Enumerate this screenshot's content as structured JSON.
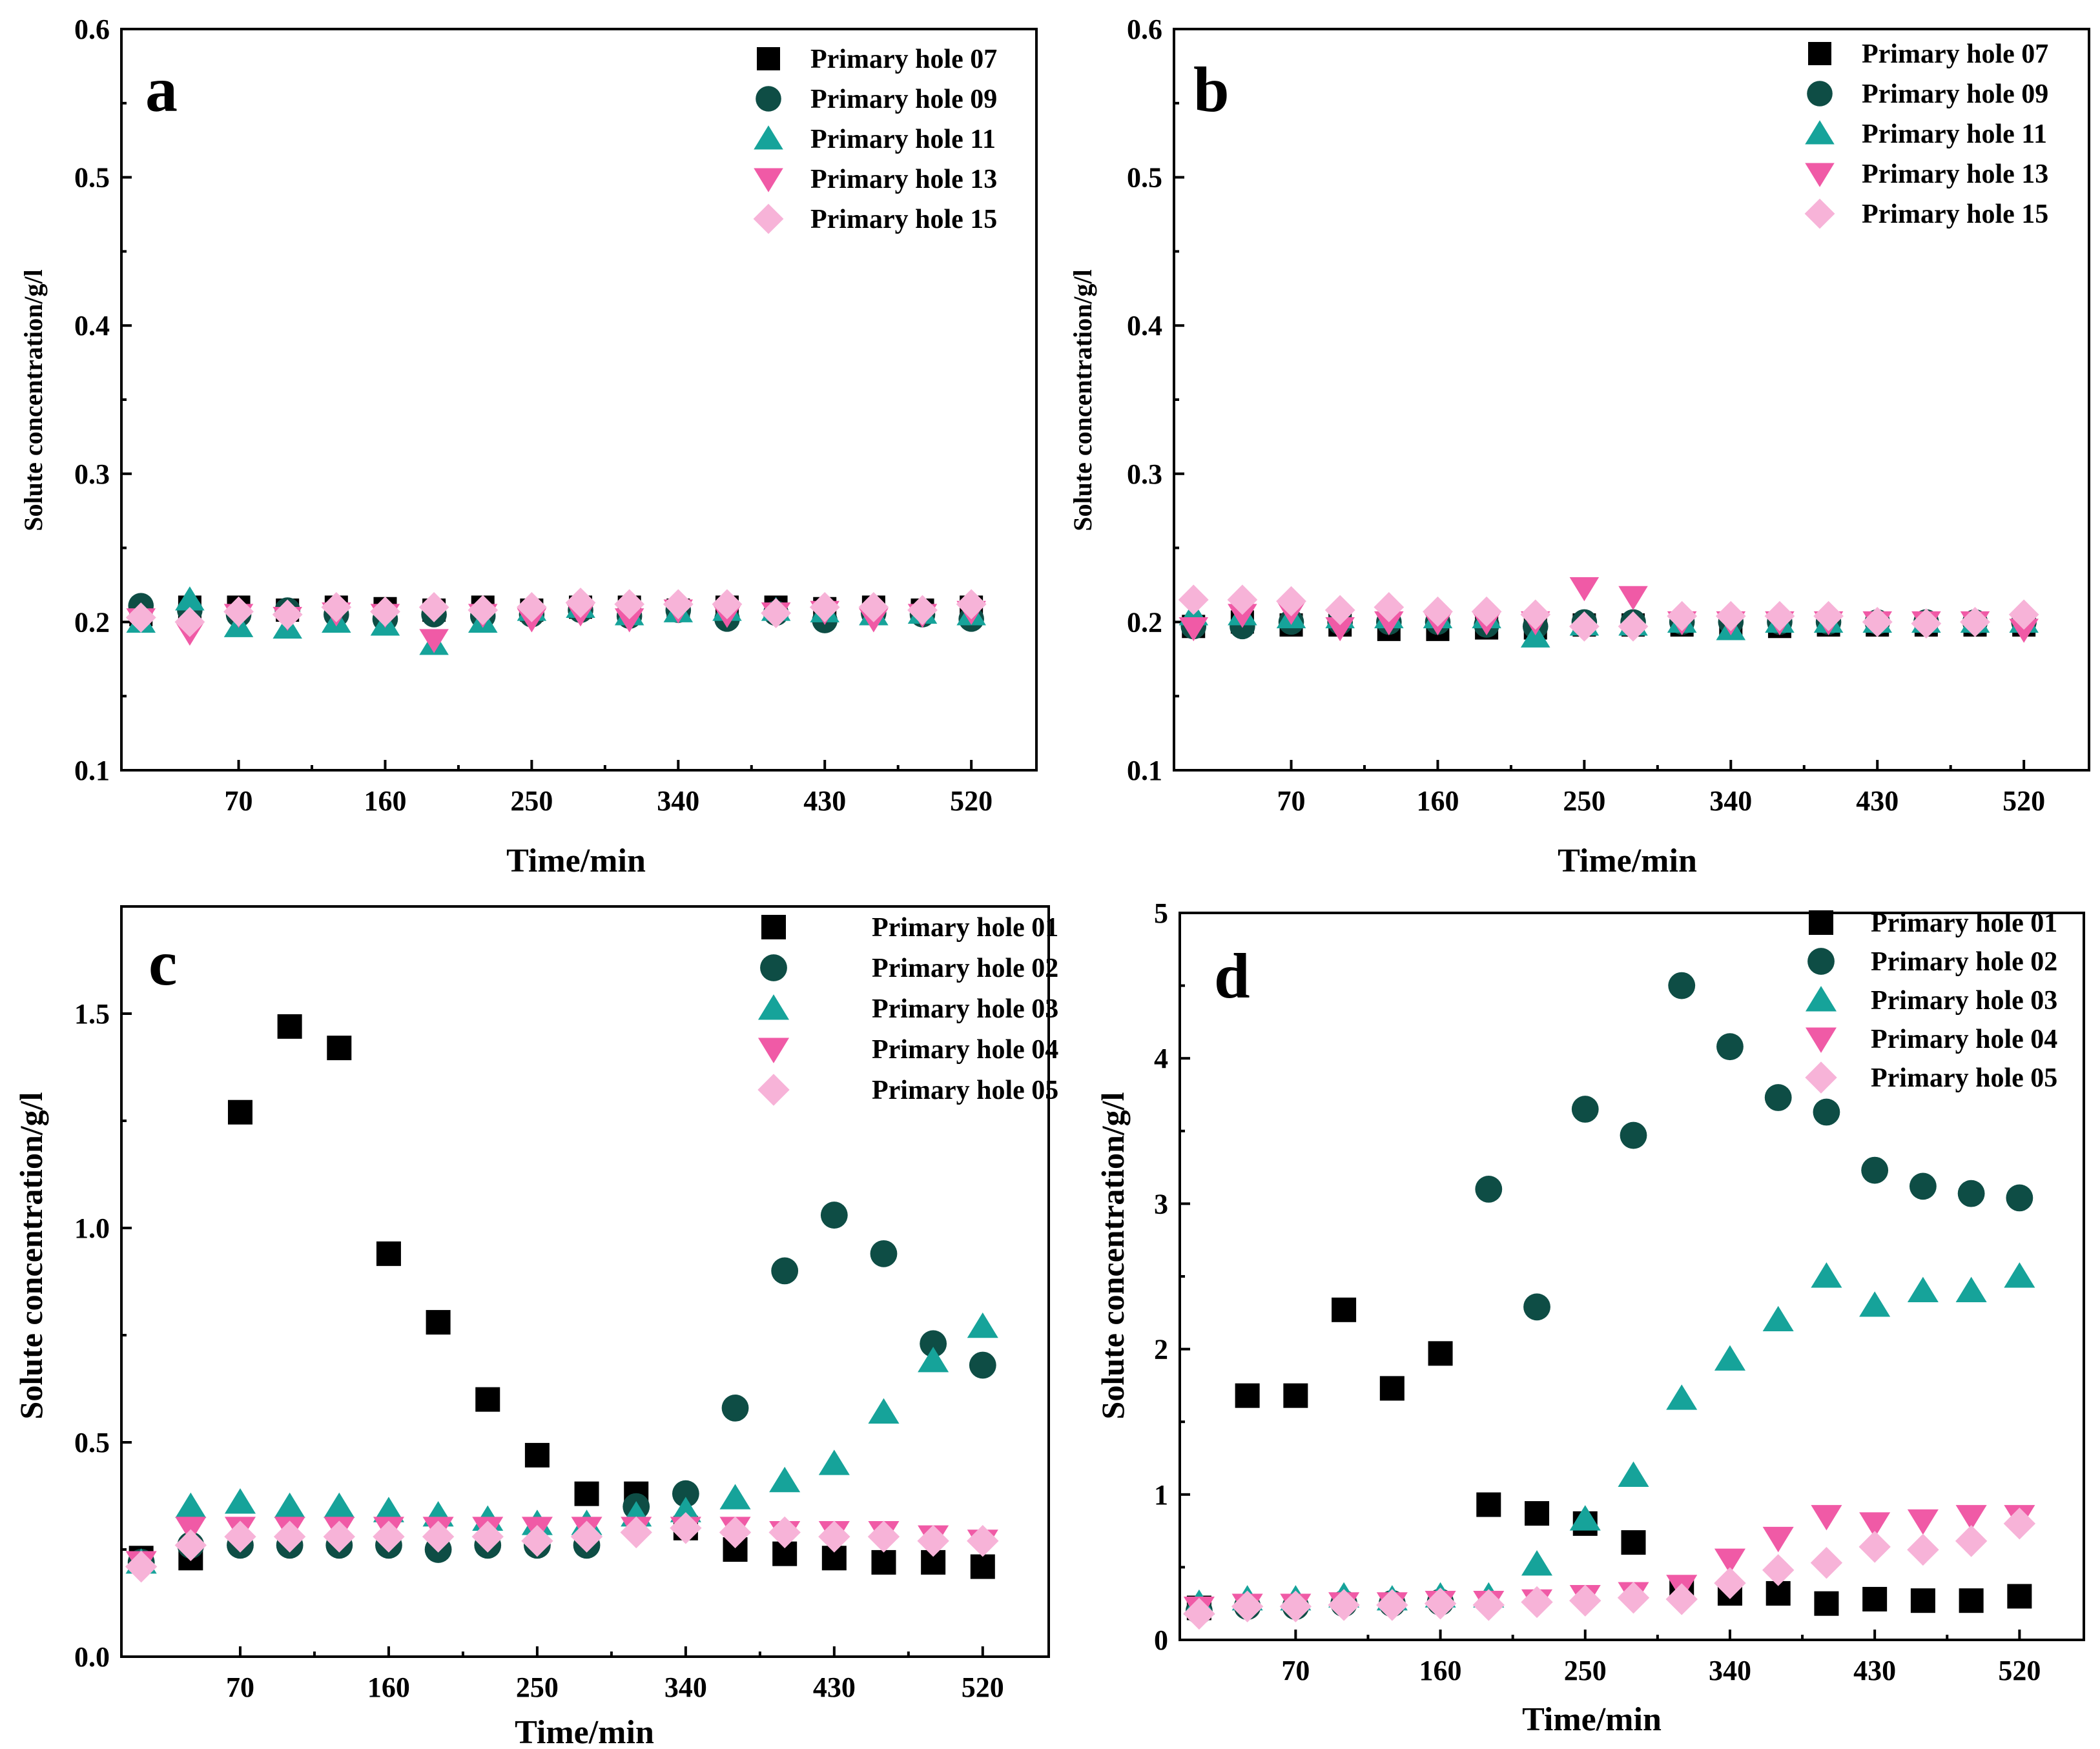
{
  "colors": {
    "black": "#000000",
    "dark_teal": "#0e4d45",
    "teal": "#16a39a",
    "pink": "#f05aa6",
    "light_pink": "#f7b3d8"
  },
  "chart_data": [
    {
      "type": "scatter",
      "panel": "a",
      "xlabel": "Time/min",
      "ylabel": "Solute concentration/g/l",
      "xticks": [
        70,
        160,
        250,
        340,
        430,
        520
      ],
      "yticks": [
        0.1,
        0.2,
        0.3,
        0.4,
        0.5,
        0.6
      ],
      "ytick_labels": [
        "0.1",
        "0.2",
        "0.3",
        "0.4",
        "0.5",
        "0.6"
      ],
      "xlim": [
        -2,
        560
      ],
      "ylim": [
        0.1,
        0.6
      ],
      "legend_position": "top-right",
      "x": [
        10,
        40,
        70,
        100,
        130,
        160,
        190,
        220,
        250,
        280,
        310,
        340,
        370,
        400,
        430,
        460,
        490,
        520
      ],
      "series": [
        {
          "name": "Primary hole 07",
          "marker": "square",
          "color": "#000000",
          "values": [
            0.205,
            0.21,
            0.21,
            0.208,
            0.21,
            0.209,
            0.208,
            0.21,
            0.208,
            0.21,
            0.21,
            0.208,
            0.21,
            0.21,
            0.209,
            0.21,
            0.208,
            0.21
          ]
        },
        {
          "name": "Primary hole 09",
          "marker": "circle",
          "color": "#0e4d45",
          "values": [
            0.211,
            0.208,
            0.205,
            0.208,
            0.205,
            0.202,
            0.205,
            0.204,
            0.205,
            0.208,
            0.204,
            0.208,
            0.202,
            0.206,
            0.201,
            0.206,
            0.205,
            0.202
          ]
        },
        {
          "name": "Primary hole 11",
          "marker": "triangle-up",
          "color": "#16a39a",
          "values": [
            0.2,
            0.215,
            0.197,
            0.196,
            0.2,
            0.198,
            0.185,
            0.2,
            0.208,
            0.21,
            0.205,
            0.207,
            0.208,
            0.208,
            0.207,
            0.205,
            0.206,
            0.205
          ]
        },
        {
          "name": "Primary hole 13",
          "marker": "triangle-down",
          "color": "#f05aa6",
          "values": [
            0.202,
            0.193,
            0.205,
            0.203,
            0.206,
            0.205,
            0.188,
            0.205,
            0.202,
            0.206,
            0.202,
            0.208,
            0.205,
            0.206,
            0.207,
            0.202,
            0.205,
            0.207
          ]
        },
        {
          "name": "Primary hole 15",
          "marker": "diamond",
          "color": "#f7b3d8",
          "values": [
            0.203,
            0.2,
            0.207,
            0.205,
            0.21,
            0.207,
            0.21,
            0.208,
            0.21,
            0.213,
            0.212,
            0.212,
            0.212,
            0.206,
            0.21,
            0.21,
            0.208,
            0.212
          ]
        }
      ]
    },
    {
      "type": "scatter",
      "panel": "b",
      "xlabel": "Time/min",
      "ylabel": "Solute concentration/g/l",
      "xticks": [
        70,
        160,
        250,
        340,
        430,
        520
      ],
      "yticks": [
        0.1,
        0.2,
        0.3,
        0.4,
        0.5,
        0.6
      ],
      "ytick_labels": [
        "0.1",
        "0.2",
        "0.3",
        "0.4",
        "0.5",
        "0.6"
      ],
      "xlim": [
        -2,
        560
      ],
      "ylim": [
        0.1,
        0.6
      ],
      "legend_position": "top-right",
      "x": [
        10,
        40,
        70,
        100,
        130,
        160,
        190,
        220,
        250,
        280,
        310,
        340,
        370,
        400,
        430,
        460,
        490,
        520
      ],
      "series": [
        {
          "name": "Primary hole 07",
          "marker": "square",
          "color": "#000000",
          "values": [
            0.197,
            0.2,
            0.198,
            0.198,
            0.195,
            0.195,
            0.196,
            0.196,
            0.198,
            0.198,
            0.198,
            0.198,
            0.197,
            0.198,
            0.198,
            0.198,
            0.198,
            0.198
          ]
        },
        {
          "name": "Primary hole 09",
          "marker": "circle",
          "color": "#0e4d45",
          "values": [
            0.197,
            0.197,
            0.2,
            0.2,
            0.2,
            0.2,
            0.198,
            0.197,
            0.2,
            0.2,
            0.2,
            0.2,
            0.2,
            0.2,
            0.2,
            0.2,
            0.2,
            0.2
          ]
        },
        {
          "name": "Primary hole 11",
          "marker": "triangle-up",
          "color": "#16a39a",
          "values": [
            0.205,
            0.205,
            0.203,
            0.203,
            0.203,
            0.203,
            0.203,
            0.19,
            0.198,
            0.198,
            0.2,
            0.195,
            0.2,
            0.2,
            0.2,
            0.2,
            0.2,
            0.2
          ]
        },
        {
          "name": "Primary hole 13",
          "marker": "triangle-down",
          "color": "#f05aa6",
          "values": [
            0.196,
            0.205,
            0.207,
            0.196,
            0.2,
            0.2,
            0.2,
            0.2,
            0.223,
            0.217,
            0.2,
            0.2,
            0.2,
            0.2,
            0.2,
            0.2,
            0.2,
            0.195
          ]
        },
        {
          "name": "Primary hole 15",
          "marker": "diamond",
          "color": "#f7b3d8",
          "values": [
            0.215,
            0.215,
            0.214,
            0.208,
            0.21,
            0.207,
            0.207,
            0.205,
            0.197,
            0.197,
            0.204,
            0.204,
            0.204,
            0.204,
            0.2,
            0.199,
            0.2,
            0.205
          ]
        }
      ]
    },
    {
      "type": "scatter",
      "panel": "c",
      "xlabel": "Time/min",
      "ylabel": "Solute concentration/g/l",
      "xticks": [
        70,
        160,
        250,
        340,
        430,
        520
      ],
      "yticks": [
        0.0,
        0.5,
        1.0,
        1.5
      ],
      "ytick_labels": [
        "0.0",
        "0.5",
        "1.0",
        "1.5"
      ],
      "xlim": [
        -2,
        560
      ],
      "ylim": [
        0.0,
        1.75
      ],
      "legend_position": "top-right",
      "x": [
        10,
        40,
        70,
        100,
        130,
        160,
        190,
        220,
        250,
        280,
        310,
        340,
        370,
        400,
        430,
        460,
        490,
        520
      ],
      "series": [
        {
          "name": "Primary hole 01",
          "marker": "square",
          "color": "#000000",
          "values": [
            0.23,
            0.23,
            1.27,
            1.47,
            1.42,
            0.94,
            0.78,
            0.6,
            0.47,
            0.38,
            0.38,
            0.3,
            0.25,
            0.24,
            0.23,
            0.22,
            0.22,
            0.21
          ]
        },
        {
          "name": "Primary hole 02",
          "marker": "circle",
          "color": "#0e4d45",
          "values": [
            0.22,
            0.26,
            0.26,
            0.26,
            0.26,
            0.26,
            0.25,
            0.26,
            0.26,
            0.26,
            0.35,
            0.38,
            0.58,
            0.9,
            1.03,
            0.94,
            0.73,
            0.68
          ]
        },
        {
          "name": "Primary hole 03",
          "marker": "triangle-up",
          "color": "#16a39a",
          "values": [
            0.22,
            0.35,
            0.36,
            0.35,
            0.35,
            0.34,
            0.33,
            0.32,
            0.31,
            0.31,
            0.33,
            0.34,
            0.37,
            0.41,
            0.45,
            0.57,
            0.69,
            0.77
          ]
        },
        {
          "name": "Primary hole 04",
          "marker": "triangle-down",
          "color": "#f05aa6",
          "values": [
            0.22,
            0.3,
            0.3,
            0.3,
            0.3,
            0.3,
            0.3,
            0.3,
            0.3,
            0.3,
            0.3,
            0.3,
            0.3,
            0.29,
            0.29,
            0.29,
            0.28,
            0.27
          ]
        },
        {
          "name": "Primary hole 05",
          "marker": "diamond",
          "color": "#f7b3d8",
          "values": [
            0.21,
            0.26,
            0.28,
            0.28,
            0.28,
            0.28,
            0.28,
            0.28,
            0.27,
            0.28,
            0.29,
            0.3,
            0.29,
            0.29,
            0.28,
            0.28,
            0.27,
            0.27
          ]
        }
      ]
    },
    {
      "type": "scatter",
      "panel": "d",
      "xlabel": "Time/min",
      "ylabel": "Solute concentration/g/l",
      "xticks": [
        70,
        160,
        250,
        340,
        430,
        520
      ],
      "yticks": [
        0,
        1,
        2,
        3,
        4,
        5
      ],
      "ytick_labels": [
        "0",
        "1",
        "2",
        "3",
        "4",
        "5"
      ],
      "xlim": [
        -2,
        560
      ],
      "ylim": [
        0,
        5
      ],
      "legend_position": "top-right",
      "x": [
        10,
        40,
        70,
        100,
        130,
        160,
        190,
        220,
        250,
        280,
        310,
        340,
        370,
        400,
        430,
        460,
        490,
        520
      ],
      "series": [
        {
          "name": "Primary hole 01",
          "marker": "square",
          "color": "#000000",
          "values": [
            0.22,
            1.68,
            1.68,
            2.27,
            1.73,
            1.97,
            0.93,
            0.87,
            0.8,
            0.67,
            0.35,
            0.32,
            0.32,
            0.25,
            0.28,
            0.27,
            0.27,
            0.3
          ]
        },
        {
          "name": "Primary hole 02",
          "marker": "circle",
          "color": "#0e4d45",
          "values": [
            0.2,
            0.23,
            0.23,
            0.25,
            0.25,
            0.26,
            3.1,
            2.29,
            3.65,
            3.47,
            4.5,
            4.08,
            3.73,
            3.63,
            3.23,
            3.12,
            3.07,
            3.04
          ]
        },
        {
          "name": "Primary hole 03",
          "marker": "triangle-up",
          "color": "#16a39a",
          "values": [
            0.25,
            0.28,
            0.28,
            0.3,
            0.28,
            0.3,
            0.3,
            0.52,
            0.83,
            1.13,
            1.66,
            1.93,
            2.2,
            2.5,
            2.3,
            2.4,
            2.4,
            2.5
          ]
        },
        {
          "name": "Primary hole 04",
          "marker": "triangle-down",
          "color": "#f05aa6",
          "values": [
            0.22,
            0.24,
            0.24,
            0.25,
            0.25,
            0.26,
            0.26,
            0.27,
            0.3,
            0.32,
            0.37,
            0.55,
            0.7,
            0.85,
            0.8,
            0.82,
            0.85,
            0.85
          ]
        },
        {
          "name": "Primary hole 05",
          "marker": "diamond",
          "color": "#f7b3d8",
          "values": [
            0.18,
            0.23,
            0.23,
            0.24,
            0.24,
            0.25,
            0.24,
            0.26,
            0.27,
            0.29,
            0.28,
            0.39,
            0.48,
            0.53,
            0.64,
            0.62,
            0.68,
            0.8
          ]
        }
      ]
    }
  ]
}
